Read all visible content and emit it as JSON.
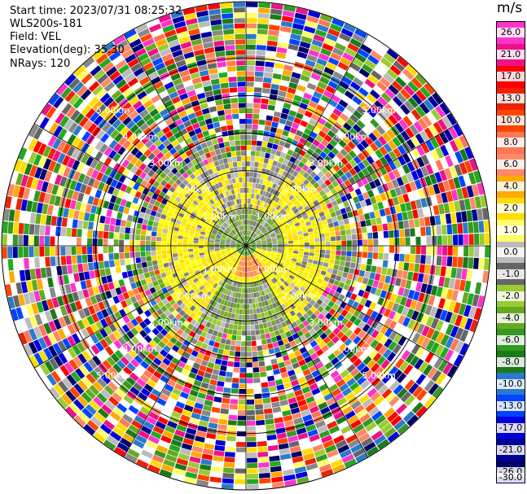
{
  "header": {
    "start_time": "Start time: 2023/07/31 08:25:32",
    "instrument": "WLS200s-181",
    "field": "Field: VEL",
    "elevation": "Elevation(deg): 35.30",
    "nrays": "NRays: 120"
  },
  "colorbar": {
    "title": "m/s",
    "ticks": [
      "26.0",
      "21.0",
      "17.0",
      "13.0",
      "10.0",
      "8.0",
      "6.0",
      "4.0",
      "2.0",
      "1.0",
      "0.0",
      "-1.0",
      "-2.0",
      "-4.0",
      "-6.0",
      "-8.0",
      "-10.0",
      "-13.0",
      "-17.0",
      "-21.0",
      "-26.0",
      "-30.0"
    ],
    "colors": [
      "#ff33cc",
      "#ee1188",
      "#ff0000",
      "#ee2200",
      "#ff4400",
      "#ff7755",
      "#ff8866",
      "#ffaa00",
      "#ffdd00",
      "#ffff66",
      "#bbbbbb",
      "#666666",
      "#99cc33",
      "#66aa22",
      "#339922",
      "#1a7a1a",
      "#2a7acc",
      "#0044ff",
      "#0000dd",
      "#000099",
      "#000066"
    ]
  },
  "range_rings": [
    {
      "label": "1.00km",
      "km": 1
    },
    {
      "label": "2.00km",
      "km": 2
    },
    {
      "label": "3.00km",
      "km": 3
    },
    {
      "label": "4.00km",
      "km": 4
    },
    {
      "label": "5.00km",
      "km": 5
    }
  ]
}
